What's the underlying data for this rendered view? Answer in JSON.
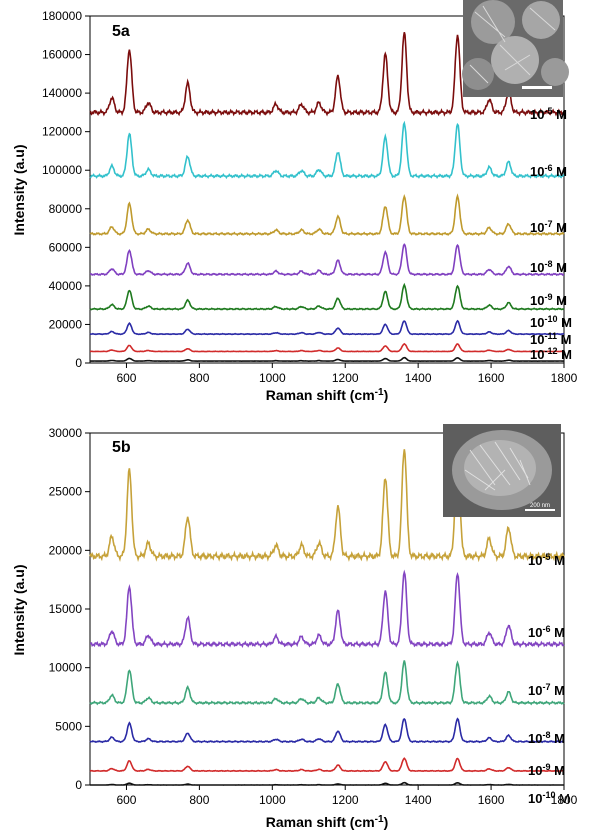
{
  "chart_data": [
    {
      "type": "line",
      "panel_label": "5a",
      "xlabel": "Raman shift (cm-1)",
      "xlabel_base": "Raman shift (cm",
      "xlabel_sup": "-1",
      "xlabel_close": ")",
      "ylabel": "Intensity (a.u)",
      "xlim": [
        500,
        1800
      ],
      "ylim": [
        0,
        180000
      ],
      "xticks": [
        600,
        800,
        1000,
        1200,
        1400,
        1600,
        1800
      ],
      "yticks": [
        0,
        20000,
        40000,
        60000,
        80000,
        100000,
        120000,
        140000,
        160000,
        180000
      ],
      "inset": "sem-image-rose-flower",
      "series": [
        {
          "name": "10-5 M",
          "label_base": "10",
          "label_exp": "-5",
          "label_unit": " M",
          "color": "#7b0d0d",
          "baseline": 130000,
          "scale": 42000
        },
        {
          "name": "10-6 M",
          "label_base": "10",
          "label_exp": "-6",
          "label_unit": " M",
          "color": "#33c1cc",
          "baseline": 97000,
          "scale": 28000
        },
        {
          "name": "10-7 M",
          "label_base": "10",
          "label_exp": "-7",
          "label_unit": " M",
          "color": "#bf9a2d",
          "baseline": 67000,
          "scale": 20000
        },
        {
          "name": "10-8 M",
          "label_base": "10",
          "label_exp": "-8",
          "label_unit": " M",
          "color": "#8040c0",
          "baseline": 46000,
          "scale": 16000
        },
        {
          "name": "10-9 M",
          "label_base": "10",
          "label_exp": "-9",
          "label_unit": " M",
          "color": "#1f7a1f",
          "baseline": 28000,
          "scale": 12500
        },
        {
          "name": "10-10 M",
          "label_base": "10",
          "label_exp": "-10",
          "label_unit": " M",
          "color": "#2b2ba6",
          "baseline": 15000,
          "scale": 7000
        },
        {
          "name": "10-11 M",
          "label_base": "10",
          "label_exp": "-11",
          "label_unit": " M",
          "color": "#d12b2b",
          "baseline": 6000,
          "scale": 4000
        },
        {
          "name": "10-12 M",
          "label_base": "10",
          "label_exp": "-12",
          "label_unit": " M",
          "color": "#111111",
          "baseline": 1000,
          "scale": 1800
        }
      ]
    },
    {
      "type": "line",
      "panel_label": "5b",
      "xlabel": "Raman shift (cm-1)",
      "xlabel_base": "Raman shift (cm",
      "xlabel_sup": "-1",
      "xlabel_close": ")",
      "ylabel": "Intensity (a.u)",
      "xlim": [
        500,
        1800
      ],
      "ylim": [
        0,
        30000
      ],
      "xticks": [
        600,
        800,
        1000,
        1200,
        1400,
        1600,
        1800
      ],
      "yticks": [
        0,
        5000,
        10000,
        15000,
        20000,
        25000,
        30000
      ],
      "inset": "sem-image-nanostructure",
      "series": [
        {
          "name": "10-5 M",
          "label_base": "10",
          "label_exp": "-5",
          "label_unit": " M",
          "color": "#c6a23a",
          "baseline": 19500,
          "scale": 9400
        },
        {
          "name": "10-6 M",
          "label_base": "10",
          "label_exp": "-6",
          "label_unit": " M",
          "color": "#8345c2",
          "baseline": 12000,
          "scale": 6300
        },
        {
          "name": "10-7 M",
          "label_base": "10",
          "label_exp": "-7",
          "label_unit": " M",
          "color": "#3fa67a",
          "baseline": 7000,
          "scale": 3600
        },
        {
          "name": "10-8 M",
          "label_base": "10",
          "label_exp": "-8",
          "label_unit": " M",
          "color": "#2b2ba6",
          "baseline": 3700,
          "scale": 2000
        },
        {
          "name": "10-9 M",
          "label_base": "10",
          "label_exp": "-9",
          "label_unit": " M",
          "color": "#d12b2b",
          "baseline": 1200,
          "scale": 1100
        },
        {
          "name": "10-10 M",
          "label_base": "10",
          "label_exp": "-10",
          "label_unit": " M",
          "color": "#111111",
          "baseline": 0,
          "scale": 200
        }
      ]
    }
  ],
  "spectrum_peaks": {
    "positions": [
      560,
      608,
      660,
      768,
      1010,
      1080,
      1128,
      1180,
      1310,
      1362,
      1508,
      1595,
      1648
    ],
    "relative_heights": [
      0.18,
      0.78,
      0.12,
      0.36,
      0.1,
      0.1,
      0.12,
      0.45,
      0.72,
      0.98,
      0.96,
      0.16,
      0.26
    ]
  },
  "inset_scale_text": "200 nm"
}
